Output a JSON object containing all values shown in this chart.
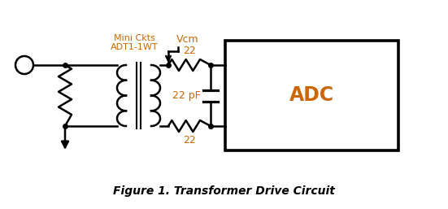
{
  "title": "Figure 1. Transformer Drive Circuit",
  "bg_color": "#ffffff",
  "line_color": "#000000",
  "orange_color": "#cc6600",
  "label_mini_ckts": "Mini Ckts",
  "label_adt": "ADT1-1WT",
  "label_vcm": "Vcm",
  "label_22_top": "22",
  "label_22_bot": "22",
  "label_22pf": "22 pF",
  "label_adc": "ADC",
  "figsize": [
    5.51,
    2.57
  ],
  "dpi": 100
}
